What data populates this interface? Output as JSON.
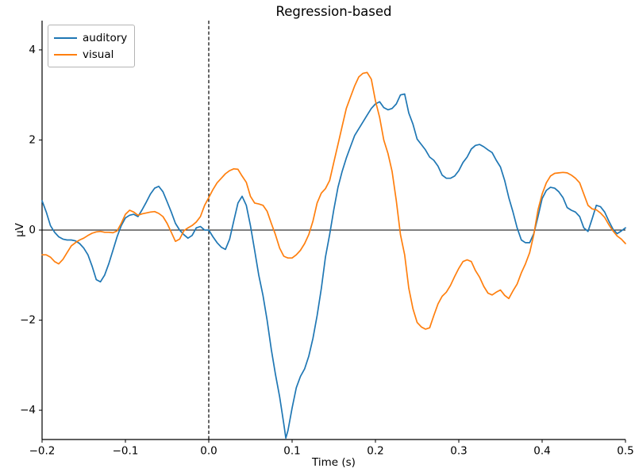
{
  "chart_data": {
    "type": "line",
    "title": "Regression-based",
    "xlabel": "Time (s)",
    "ylabel": "µV",
    "xlim": [
      -0.2,
      0.5
    ],
    "ylim": [
      -4.65,
      4.65
    ],
    "xticks": [
      -0.2,
      -0.1,
      0.0,
      0.1,
      0.2,
      0.3,
      0.4,
      0.5
    ],
    "yticks": [
      -4,
      -2,
      0,
      2,
      4
    ],
    "grid": false,
    "legend_position": "upper left",
    "annotations": {
      "hline_y": 0,
      "vline_x": 0,
      "vline_style": "dashed"
    },
    "x": [
      -0.2,
      -0.195,
      -0.19,
      -0.185,
      -0.18,
      -0.175,
      -0.17,
      -0.165,
      -0.16,
      -0.155,
      -0.15,
      -0.145,
      -0.14,
      -0.135,
      -0.13,
      -0.125,
      -0.12,
      -0.115,
      -0.11,
      -0.105,
      -0.1,
      -0.095,
      -0.09,
      -0.085,
      -0.08,
      -0.075,
      -0.07,
      -0.065,
      -0.06,
      -0.055,
      -0.05,
      -0.045,
      -0.04,
      -0.035,
      -0.03,
      -0.025,
      -0.02,
      -0.015,
      -0.01,
      -0.005,
      0,
      0.005,
      0.01,
      0.015,
      0.02,
      0.025,
      0.03,
      0.035,
      0.04,
      0.045,
      0.05,
      0.055,
      0.06,
      0.065,
      0.07,
      0.075,
      0.08,
      0.085,
      0.09,
      0.0925,
      0.095,
      0.1,
      0.105,
      0.11,
      0.115,
      0.12,
      0.125,
      0.13,
      0.135,
      0.14,
      0.145,
      0.15,
      0.155,
      0.16,
      0.165,
      0.17,
      0.175,
      0.18,
      0.185,
      0.19,
      0.195,
      0.2,
      0.205,
      0.21,
      0.215,
      0.22,
      0.225,
      0.23,
      0.235,
      0.24,
      0.245,
      0.25,
      0.255,
      0.26,
      0.265,
      0.27,
      0.275,
      0.28,
      0.285,
      0.29,
      0.295,
      0.3,
      0.305,
      0.31,
      0.315,
      0.32,
      0.325,
      0.33,
      0.335,
      0.34,
      0.345,
      0.35,
      0.355,
      0.36,
      0.365,
      0.37,
      0.375,
      0.38,
      0.385,
      0.39,
      0.395,
      0.4,
      0.405,
      0.41,
      0.415,
      0.42,
      0.425,
      0.43,
      0.435,
      0.44,
      0.445,
      0.45,
      0.455,
      0.46,
      0.465,
      0.47,
      0.475,
      0.48,
      0.485,
      0.49,
      0.495,
      0.5
    ],
    "series": [
      {
        "name": "auditory",
        "color": "#1f77b4",
        "values": [
          0.65,
          0.4,
          0.1,
          -0.05,
          -0.15,
          -0.2,
          -0.22,
          -0.22,
          -0.24,
          -0.3,
          -0.4,
          -0.55,
          -0.8,
          -1.1,
          -1.15,
          -1.0,
          -0.75,
          -0.45,
          -0.15,
          0.1,
          0.27,
          0.33,
          0.35,
          0.3,
          0.45,
          0.62,
          0.8,
          0.93,
          0.97,
          0.85,
          0.63,
          0.4,
          0.15,
          0.0,
          -0.1,
          -0.18,
          -0.12,
          0.05,
          0.08,
          0.0,
          0.0,
          -0.15,
          -0.28,
          -0.38,
          -0.43,
          -0.2,
          0.2,
          0.6,
          0.75,
          0.55,
          0.1,
          -0.45,
          -1.0,
          -1.45,
          -2.0,
          -2.65,
          -3.2,
          -3.7,
          -4.3,
          -4.62,
          -4.45,
          -3.95,
          -3.5,
          -3.25,
          -3.08,
          -2.8,
          -2.4,
          -1.9,
          -1.3,
          -0.6,
          -0.1,
          0.45,
          0.95,
          1.3,
          1.6,
          1.85,
          2.1,
          2.25,
          2.4,
          2.55,
          2.7,
          2.8,
          2.85,
          2.72,
          2.67,
          2.7,
          2.8,
          3.0,
          3.02,
          2.6,
          2.35,
          2.02,
          1.9,
          1.78,
          1.62,
          1.55,
          1.42,
          1.22,
          1.15,
          1.15,
          1.2,
          1.32,
          1.5,
          1.62,
          1.8,
          1.88,
          1.9,
          1.85,
          1.78,
          1.72,
          1.55,
          1.4,
          1.1,
          0.72,
          0.4,
          0.05,
          -0.22,
          -0.28,
          -0.28,
          -0.08,
          0.3,
          0.7,
          0.88,
          0.95,
          0.93,
          0.85,
          0.72,
          0.5,
          0.44,
          0.4,
          0.3,
          0.05,
          -0.03,
          0.25,
          0.55,
          0.52,
          0.4,
          0.2,
          0.02,
          -0.08,
          -0.02,
          0.05
        ]
      },
      {
        "name": "visual",
        "color": "#ff7f0e",
        "values": [
          -0.55,
          -0.55,
          -0.6,
          -0.7,
          -0.75,
          -0.65,
          -0.5,
          -0.35,
          -0.28,
          -0.22,
          -0.18,
          -0.12,
          -0.07,
          -0.04,
          -0.03,
          -0.05,
          -0.05,
          -0.06,
          -0.02,
          0.15,
          0.35,
          0.44,
          0.4,
          0.33,
          0.36,
          0.38,
          0.4,
          0.41,
          0.37,
          0.3,
          0.15,
          -0.05,
          -0.25,
          -0.2,
          -0.02,
          0.05,
          0.1,
          0.18,
          0.3,
          0.55,
          0.72,
          0.9,
          1.05,
          1.15,
          1.25,
          1.32,
          1.36,
          1.35,
          1.2,
          1.06,
          0.75,
          0.6,
          0.58,
          0.55,
          0.42,
          0.15,
          -0.1,
          -0.4,
          -0.58,
          -0.6,
          -0.62,
          -0.62,
          -0.55,
          -0.45,
          -0.3,
          -0.1,
          0.2,
          0.6,
          0.82,
          0.92,
          1.1,
          1.5,
          1.9,
          2.3,
          2.7,
          2.95,
          3.2,
          3.4,
          3.48,
          3.5,
          3.35,
          2.87,
          2.5,
          2.0,
          1.7,
          1.3,
          0.65,
          -0.1,
          -0.55,
          -1.29,
          -1.75,
          -2.05,
          -2.15,
          -2.2,
          -2.17,
          -1.9,
          -1.64,
          -1.47,
          -1.38,
          -1.23,
          -1.03,
          -0.85,
          -0.7,
          -0.66,
          -0.7,
          -0.9,
          -1.05,
          -1.25,
          -1.4,
          -1.44,
          -1.38,
          -1.33,
          -1.45,
          -1.52,
          -1.35,
          -1.2,
          -0.95,
          -0.75,
          -0.5,
          -0.1,
          0.45,
          0.8,
          1.05,
          1.2,
          1.26,
          1.27,
          1.28,
          1.27,
          1.22,
          1.15,
          1.05,
          0.8,
          0.55,
          0.47,
          0.45,
          0.38,
          0.28,
          0.12,
          -0.02,
          -0.13,
          -0.2,
          -0.3
        ]
      }
    ]
  },
  "legend": {
    "items": [
      {
        "label": "auditory"
      },
      {
        "label": "visual"
      }
    ]
  }
}
